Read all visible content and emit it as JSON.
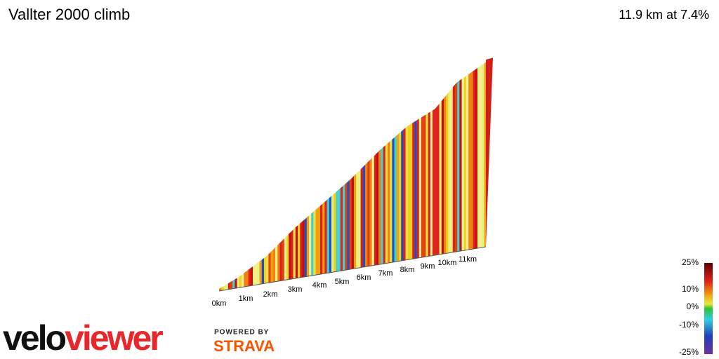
{
  "header": {
    "title": "Vallter 2000 climb",
    "summary": "11.9 km at 7.4%"
  },
  "distance_labels": [
    "0km",
    "1km",
    "2km",
    "3km",
    "4km",
    "5km",
    "6km",
    "7km",
    "8km",
    "9km",
    "10km",
    "11km"
  ],
  "legend": {
    "labels": [
      "25%",
      "10%",
      "0%",
      "-10%",
      "-25%"
    ]
  },
  "logo": {
    "velo": "velo",
    "viewer": "viewer",
    "powered": "POWERED BY",
    "strava": "STRAVA"
  }
}
